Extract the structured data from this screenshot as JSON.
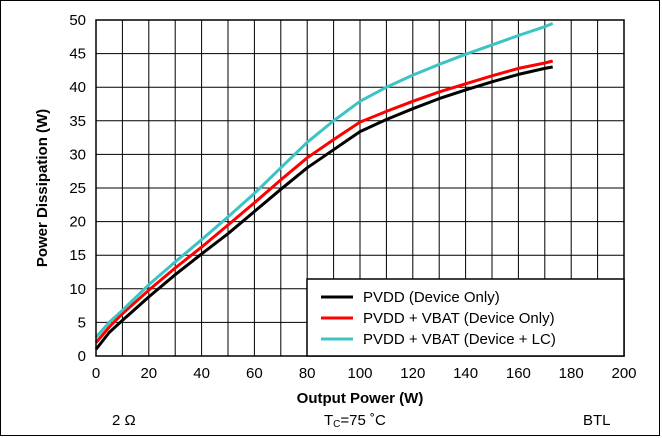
{
  "chart_data": {
    "type": "line",
    "xlabel": "Output Power (W)",
    "ylabel": "Power Dissipation (W)",
    "xlim": [
      0,
      200
    ],
    "ylim": [
      0,
      50
    ],
    "xticks": [
      "0",
      "20",
      "40",
      "60",
      "80",
      "100",
      "120",
      "140",
      "160",
      "180",
      "200"
    ],
    "yticks": [
      "0",
      "5",
      "10",
      "15",
      "20",
      "25",
      "30",
      "35",
      "40",
      "45",
      "50"
    ],
    "grid": true,
    "legend_position": "bottom-right",
    "series": [
      {
        "name": "PVDD (Device Only)",
        "color": "#000000",
        "x": [
          0,
          5,
          10,
          20,
          30,
          40,
          50,
          60,
          70,
          80,
          90,
          100,
          110,
          120,
          130,
          140,
          150,
          160,
          170,
          173
        ],
        "y": [
          1,
          3.5,
          5.3,
          8.8,
          12.1,
          15.2,
          18.2,
          21.5,
          24.8,
          28,
          30.7,
          33.4,
          35.2,
          36.8,
          38.3,
          39.6,
          40.8,
          41.9,
          42.8,
          43
        ]
      },
      {
        "name": "PVDD + VBAT (Device Only)",
        "color": "#ff0000",
        "x": [
          0,
          5,
          10,
          20,
          30,
          40,
          50,
          60,
          70,
          80,
          90,
          100,
          110,
          120,
          130,
          140,
          150,
          160,
          170,
          173
        ],
        "y": [
          2,
          4.3,
          6.3,
          9.8,
          13.1,
          16.2,
          19.5,
          22.8,
          26.2,
          29.5,
          32.2,
          34.8,
          36.4,
          37.9,
          39.3,
          40.5,
          41.7,
          42.8,
          43.6,
          43.9
        ]
      },
      {
        "name": "PVDD + VBAT (Device + LC)",
        "color": "#3cc4c4",
        "x": [
          0,
          5,
          10,
          20,
          30,
          40,
          50,
          60,
          70,
          80,
          90,
          100,
          110,
          120,
          130,
          140,
          150,
          160,
          170,
          173
        ],
        "y": [
          2.8,
          5,
          6.8,
          10.6,
          14,
          17.3,
          20.7,
          24.2,
          28,
          31.8,
          35,
          37.9,
          40,
          41.8,
          43.4,
          44.9,
          46.3,
          47.7,
          49,
          49.5
        ]
      }
    ]
  },
  "footer": {
    "load": "2 Ω",
    "temp_prefix": "T",
    "temp_sub": "C",
    "temp_suffix": "=75 ˚C",
    "mode": "BTL"
  }
}
